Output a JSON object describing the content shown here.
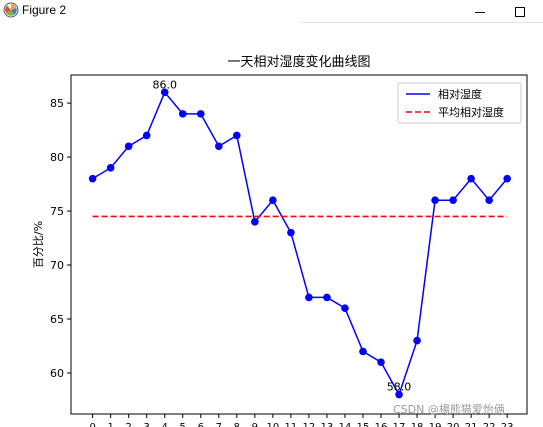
{
  "window": {
    "title": "Figure 2",
    "icon": "matplotlib-icon",
    "buttons": {
      "minimize": "minimize-icon",
      "maximize": "maximize-icon"
    }
  },
  "watermark": "CSDN @楊熊猫爱怡俩",
  "chart_data": {
    "type": "line",
    "title": "一天相对湿度变化曲线图",
    "xlabel": "",
    "ylabel": "百分比/%",
    "x": [
      0,
      1,
      2,
      3,
      4,
      5,
      6,
      7,
      8,
      9,
      10,
      11,
      12,
      13,
      14,
      15,
      16,
      17,
      18,
      19,
      20,
      21,
      22,
      23
    ],
    "x_tick_labels": [
      "0",
      "1",
      "2",
      "3",
      "4",
      "5",
      "6",
      "7",
      "8",
      "9",
      "10",
      "11",
      "12",
      "13",
      "14",
      "15",
      "16",
      "17",
      "18",
      "19",
      "20",
      "21",
      "22",
      "23"
    ],
    "ylim": [
      56.2,
      87.6
    ],
    "y_ticks": [
      60,
      65,
      70,
      75,
      80,
      85
    ],
    "y_tick_labels": [
      "60",
      "65",
      "70",
      "75",
      "80",
      "85"
    ],
    "grid": false,
    "legend_position": "top-right",
    "series": [
      {
        "name": "相对湿度",
        "style": "solid-line-with-dot-markers",
        "color": "#0000ff",
        "values": [
          78,
          79,
          81,
          82,
          86,
          84,
          84,
          81,
          82,
          74,
          76,
          73,
          67,
          67,
          66,
          62,
          61,
          58,
          63,
          76,
          76,
          78,
          76,
          78
        ]
      },
      {
        "name": "平均相对湿度",
        "style": "dashed",
        "color": "#ff0000",
        "values": [
          74.5,
          74.5,
          74.5,
          74.5,
          74.5,
          74.5,
          74.5,
          74.5,
          74.5,
          74.5,
          74.5,
          74.5,
          74.5,
          74.5,
          74.5,
          74.5,
          74.5,
          74.5,
          74.5,
          74.5,
          74.5,
          74.5,
          74.5,
          74.5
        ]
      }
    ],
    "annotations": [
      {
        "x": 4,
        "y": 86,
        "text": "86.0"
      },
      {
        "x": 17,
        "y": 58,
        "text": "58.0"
      }
    ]
  }
}
